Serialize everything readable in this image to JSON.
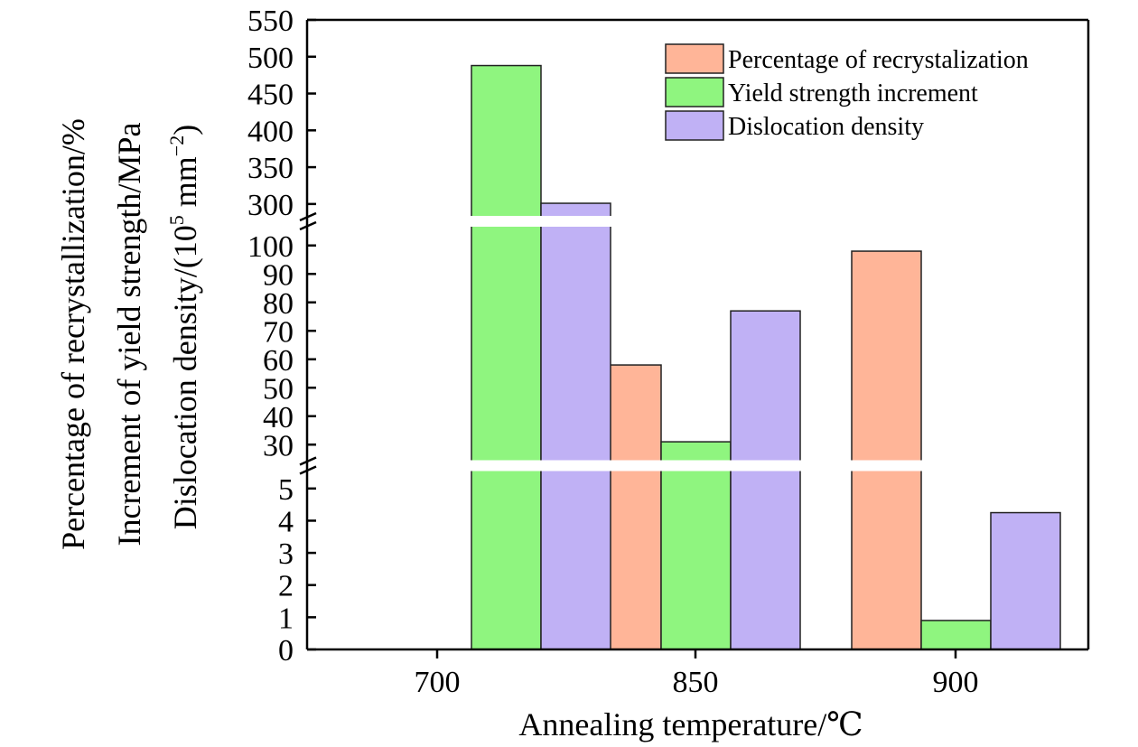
{
  "chart_data": {
    "type": "bar",
    "categories": [
      "700",
      "850",
      "900"
    ],
    "xlabel": "Annealing temperature/℃",
    "ylabel_lines": [
      "Percentage of recrystallization/%",
      "Increment of yield strength/MPa",
      "Dislocation density/(10",
      "5",
      " mm",
      "−2",
      ")"
    ],
    "y_segments": [
      {
        "range": [
          0,
          5.5
        ],
        "ticks": [
          0,
          1,
          2,
          3,
          4,
          5
        ]
      },
      {
        "range": [
          25,
          105
        ],
        "ticks": [
          30,
          40,
          50,
          60,
          70,
          80,
          90,
          100
        ]
      },
      {
        "range": [
          290,
          550
        ],
        "ticks": [
          300,
          350,
          400,
          450,
          500,
          550
        ]
      }
    ],
    "axis_break": true,
    "legend_placement": "top-right",
    "series": [
      {
        "name": "Percentage of recrystalization",
        "color": "#FFB598",
        "values": [
          null,
          58,
          98
        ]
      },
      {
        "name": "Yield strength increment",
        "color": "#8FF57F",
        "values": [
          488,
          31,
          0.9
        ]
      },
      {
        "name": "Dislocation density",
        "color": "#C0B1F5",
        "values": [
          301,
          77,
          4.25
        ]
      }
    ]
  }
}
